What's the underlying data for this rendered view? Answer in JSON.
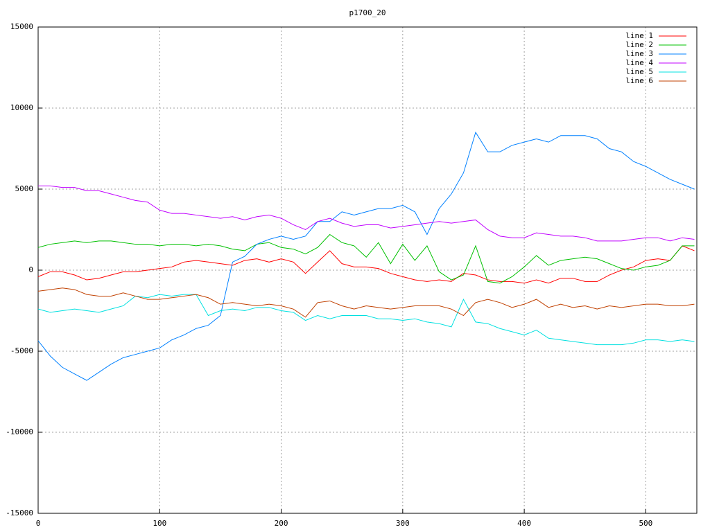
{
  "chart_data": {
    "type": "line",
    "title": "p1700_20",
    "x": [
      0,
      10,
      20,
      30,
      40,
      50,
      60,
      70,
      80,
      90,
      100,
      110,
      120,
      130,
      140,
      150,
      160,
      170,
      180,
      190,
      200,
      210,
      220,
      230,
      240,
      250,
      260,
      270,
      280,
      290,
      300,
      310,
      320,
      330,
      340,
      350,
      360,
      370,
      380,
      390,
      400,
      410,
      420,
      430,
      440,
      450,
      460,
      470,
      480,
      490,
      500,
      510,
      520,
      530,
      540
    ],
    "xlim": [
      0,
      542
    ],
    "xticks": [
      0,
      100,
      200,
      300,
      400,
      500
    ],
    "ylim": [
      -15000,
      15000
    ],
    "yticks": [
      -15000,
      -10000,
      -5000,
      0,
      5000,
      10000,
      15000
    ],
    "grid": true,
    "legend": "top-right",
    "series": [
      {
        "name": "line 1",
        "color": "#ff0000",
        "values": [
          -400,
          -100,
          -100,
          -300,
          -600,
          -500,
          -300,
          -100,
          -100,
          0,
          100,
          200,
          500,
          600,
          500,
          400,
          300,
          600,
          700,
          500,
          700,
          500,
          -200,
          500,
          1200,
          400,
          200,
          200,
          100,
          -200,
          -400,
          -600,
          -700,
          -600,
          -700,
          -200,
          -300,
          -600,
          -700,
          -700,
          -800,
          -600,
          -800,
          -500,
          -500,
          -700,
          -700,
          -300,
          0,
          200,
          600,
          700,
          600,
          1500,
          1200
        ]
      },
      {
        "name": "line 2",
        "color": "#00c000",
        "values": [
          1400,
          1600,
          1700,
          1800,
          1700,
          1800,
          1800,
          1700,
          1600,
          1600,
          1500,
          1600,
          1600,
          1500,
          1600,
          1500,
          1300,
          1200,
          1600,
          1700,
          1400,
          1300,
          1000,
          1400,
          2200,
          1700,
          1500,
          800,
          1700,
          400,
          1600,
          600,
          1500,
          -100,
          -600,
          -300,
          1500,
          -700,
          -800,
          -400,
          200,
          900,
          300,
          600,
          700,
          800,
          700,
          400,
          100,
          0,
          200,
          300,
          600,
          1500,
          1500
        ]
      },
      {
        "name": "line 3",
        "color": "#0080ff",
        "values": [
          -4350,
          -5300,
          -6000,
          -6400,
          -6800,
          -6300,
          -5800,
          -5400,
          -5200,
          -5000,
          -4800,
          -4300,
          -4000,
          -3600,
          -3400,
          -2800,
          500,
          850,
          1600,
          1900,
          2100,
          1900,
          2100,
          3000,
          3000,
          3600,
          3400,
          3600,
          3800,
          3800,
          4000,
          3600,
          2200,
          3800,
          4700,
          6000,
          8500,
          7300,
          7300,
          7700,
          7900,
          8100,
          7900,
          8300,
          8300,
          8300,
          8100,
          7500,
          7300,
          6700,
          6400,
          6000,
          5600,
          5300,
          5000
        ]
      },
      {
        "name": "line 4",
        "color": "#c000ff",
        "values": [
          5200,
          5200,
          5100,
          5100,
          4900,
          4900,
          4700,
          4500,
          4300,
          4200,
          3700,
          3500,
          3500,
          3400,
          3300,
          3200,
          3300,
          3100,
          3300,
          3400,
          3200,
          2800,
          2500,
          3000,
          3200,
          2900,
          2700,
          2800,
          2800,
          2600,
          2700,
          2800,
          2900,
          3000,
          2900,
          3000,
          3100,
          2500,
          2100,
          2000,
          2000,
          2300,
          2200,
          2100,
          2100,
          2000,
          1800,
          1800,
          1800,
          1900,
          2000,
          2000,
          1800,
          2000,
          1900
        ]
      },
      {
        "name": "line 5",
        "color": "#00e0e0",
        "values": [
          -2400,
          -2600,
          -2500,
          -2400,
          -2500,
          -2600,
          -2400,
          -2200,
          -1600,
          -1700,
          -1500,
          -1600,
          -1500,
          -1500,
          -2800,
          -2500,
          -2400,
          -2500,
          -2300,
          -2300,
          -2500,
          -2600,
          -3100,
          -2800,
          -3000,
          -2800,
          -2800,
          -2800,
          -3000,
          -3000,
          -3100,
          -3000,
          -3200,
          -3300,
          -3500,
          -1800,
          -3200,
          -3300,
          -3600,
          -3800,
          -4000,
          -3700,
          -4200,
          -4300,
          -4400,
          -4500,
          -4600,
          -4600,
          -4600,
          -4500,
          -4300,
          -4300,
          -4400,
          -4300,
          -4400
        ]
      },
      {
        "name": "line 6",
        "color": "#c04000",
        "values": [
          -1300,
          -1200,
          -1100,
          -1200,
          -1500,
          -1600,
          -1600,
          -1400,
          -1600,
          -1800,
          -1800,
          -1700,
          -1600,
          -1500,
          -1700,
          -2100,
          -2000,
          -2100,
          -2200,
          -2100,
          -2200,
          -2400,
          -2900,
          -2000,
          -1900,
          -2200,
          -2400,
          -2200,
          -2300,
          -2400,
          -2300,
          -2200,
          -2200,
          -2200,
          -2400,
          -2800,
          -2000,
          -1800,
          -2000,
          -2300,
          -2100,
          -1800,
          -2300,
          -2100,
          -2300,
          -2200,
          -2400,
          -2200,
          -2300,
          -2200,
          -2100,
          -2100,
          -2200,
          -2200,
          -2100
        ]
      }
    ]
  }
}
